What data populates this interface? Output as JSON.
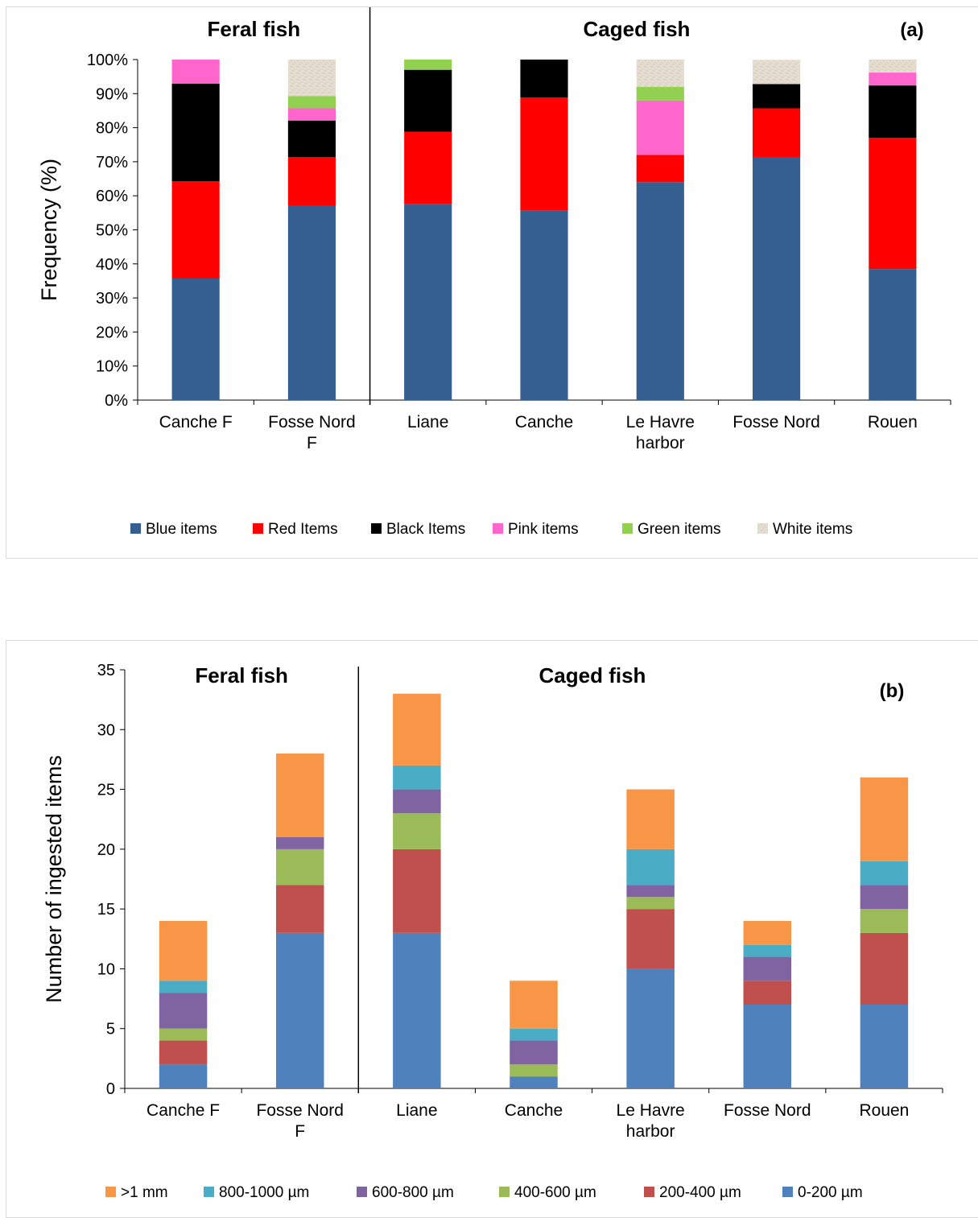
{
  "chart_data": [
    {
      "type": "bar",
      "stacked": true,
      "title": "",
      "panel_label": "(a)",
      "group_labels": [
        "Feral fish",
        "Caged fish"
      ],
      "categories": [
        "Canche F",
        "Fosse Nord F",
        "Liane",
        "Canche",
        "Le Havre harbor",
        "Fosse Nord",
        "Rouen"
      ],
      "category_lines": [
        [
          "Canche F"
        ],
        [
          "Fosse Nord",
          "F"
        ],
        [
          "Liane"
        ],
        [
          "Canche"
        ],
        [
          "Le Havre",
          "harbor"
        ],
        [
          "Fosse Nord"
        ],
        [
          "Rouen"
        ]
      ],
      "xlabel": "",
      "ylabel": "Frequency (%)",
      "ylim": [
        0,
        100
      ],
      "yticks": [
        0,
        10,
        20,
        30,
        40,
        50,
        60,
        70,
        80,
        90,
        100
      ],
      "ytick_labels": [
        "0%",
        "10%",
        "20%",
        "30%",
        "40%",
        "50%",
        "60%",
        "70%",
        "80%",
        "90%",
        "100%"
      ],
      "grid": false,
      "legend_position": "bottom",
      "series": [
        {
          "name": "Blue items",
          "color": "#355F91",
          "values": [
            35.7,
            57.1,
            57.6,
            55.6,
            64.0,
            71.4,
            38.5
          ]
        },
        {
          "name": "Red Items",
          "color": "#FF0000",
          "values": [
            28.6,
            14.3,
            21.2,
            33.3,
            8.0,
            14.3,
            38.5
          ]
        },
        {
          "name": "Black Items",
          "color": "#000000",
          "values": [
            28.6,
            10.7,
            18.2,
            11.1,
            0,
            7.1,
            15.4
          ]
        },
        {
          "name": "Pink items",
          "color": "#FF66CC",
          "values": [
            7.1,
            3.6,
            0,
            0,
            16.0,
            0,
            3.8
          ]
        },
        {
          "name": "Green items",
          "color": "#92D050",
          "values": [
            0,
            3.6,
            3.0,
            0,
            4.0,
            0,
            0
          ]
        },
        {
          "name": "White items",
          "color": "#DDD6C8",
          "values": [
            0,
            10.7,
            0,
            0,
            8.0,
            7.1,
            3.8
          ]
        }
      ]
    },
    {
      "type": "bar",
      "stacked": true,
      "title": "",
      "panel_label": "(b)",
      "group_labels": [
        "Feral fish",
        "Caged fish"
      ],
      "categories": [
        "Canche F",
        "Fosse Nord F",
        "Liane",
        "Canche",
        "Le Havre harbor",
        "Fosse Nord",
        "Rouen"
      ],
      "category_lines": [
        [
          "Canche F"
        ],
        [
          "Fosse Nord",
          "F"
        ],
        [
          "Liane"
        ],
        [
          "Canche"
        ],
        [
          "Le Havre",
          "harbor"
        ],
        [
          "Fosse Nord"
        ],
        [
          "Rouen"
        ]
      ],
      "xlabel": "",
      "ylabel": "Number of ingested items",
      "ylim": [
        0,
        35
      ],
      "yticks": [
        0,
        5,
        10,
        15,
        20,
        25,
        30,
        35
      ],
      "ytick_labels": [
        "0",
        "5",
        "10",
        "15",
        "20",
        "25",
        "30",
        "35"
      ],
      "grid": false,
      "legend_position": "bottom",
      "legend_order": [
        5,
        4,
        3,
        2,
        1,
        0
      ],
      "series": [
        {
          "name": "0-200 µm",
          "color": "#4F81BD",
          "values": [
            2,
            13,
            13,
            1,
            10,
            7,
            7
          ]
        },
        {
          "name": "200-400 µm",
          "color": "#C0504D",
          "values": [
            2,
            4,
            7,
            0,
            5,
            2,
            6
          ]
        },
        {
          "name": "400-600 µm",
          "color": "#9BBB59",
          "values": [
            1,
            3,
            3,
            1,
            1,
            0,
            2
          ]
        },
        {
          "name": "600-800 µm",
          "color": "#8064A2",
          "values": [
            3,
            1,
            2,
            2,
            1,
            2,
            2
          ]
        },
        {
          "name": "800-1000 µm",
          "color": "#4BACC6",
          "values": [
            1,
            0,
            2,
            1,
            3,
            1,
            2
          ]
        },
        {
          "name": ">1 mm",
          "color": "#F79646",
          "values": [
            5,
            7,
            6,
            4,
            5,
            2,
            7
          ]
        }
      ]
    }
  ]
}
